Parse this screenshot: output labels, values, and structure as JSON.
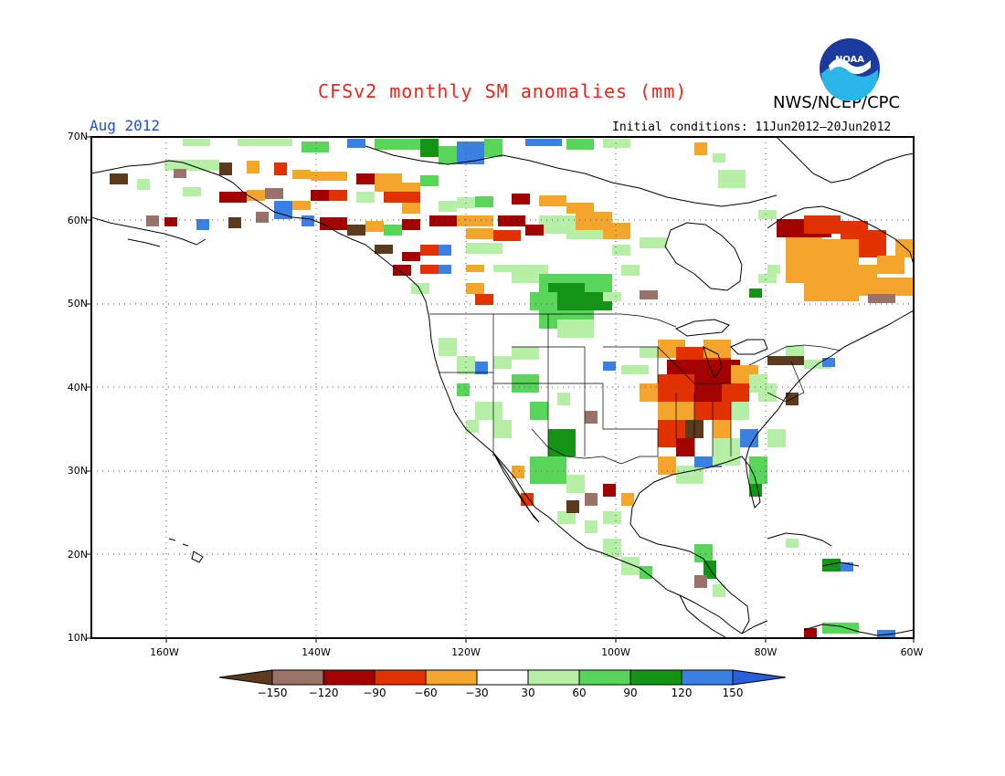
{
  "title": "CFSv2 monthly SM anomalies (mm)",
  "agency": "NWS/NCEP/CPC",
  "month_label": "Aug 2012",
  "initial_conditions": "Initial conditions: 11Jun2012–20Jun2012",
  "logo_text": "NOAA",
  "lat_labels": [
    "70N",
    "60N",
    "50N",
    "40N",
    "30N",
    "20N",
    "10N"
  ],
  "lon_labels": [
    "160W",
    "140W",
    "120W",
    "100W",
    "80W",
    "60W"
  ],
  "colorbar": {
    "labels": [
      "−150",
      "−120",
      "−90",
      "−60",
      "−30",
      "30",
      "60",
      "90",
      "120",
      "150"
    ],
    "colors": [
      "#5c3a1e",
      "#9a7368",
      "#a30000",
      "#e33100",
      "#f4a62c",
      "#ffffff",
      "#b6f0a6",
      "#58d65a",
      "#139414",
      "#3b80e3",
      "#2b5fd9"
    ]
  },
  "colors": {
    "title": "#e8281e",
    "month": "#1f4fd9"
  }
}
